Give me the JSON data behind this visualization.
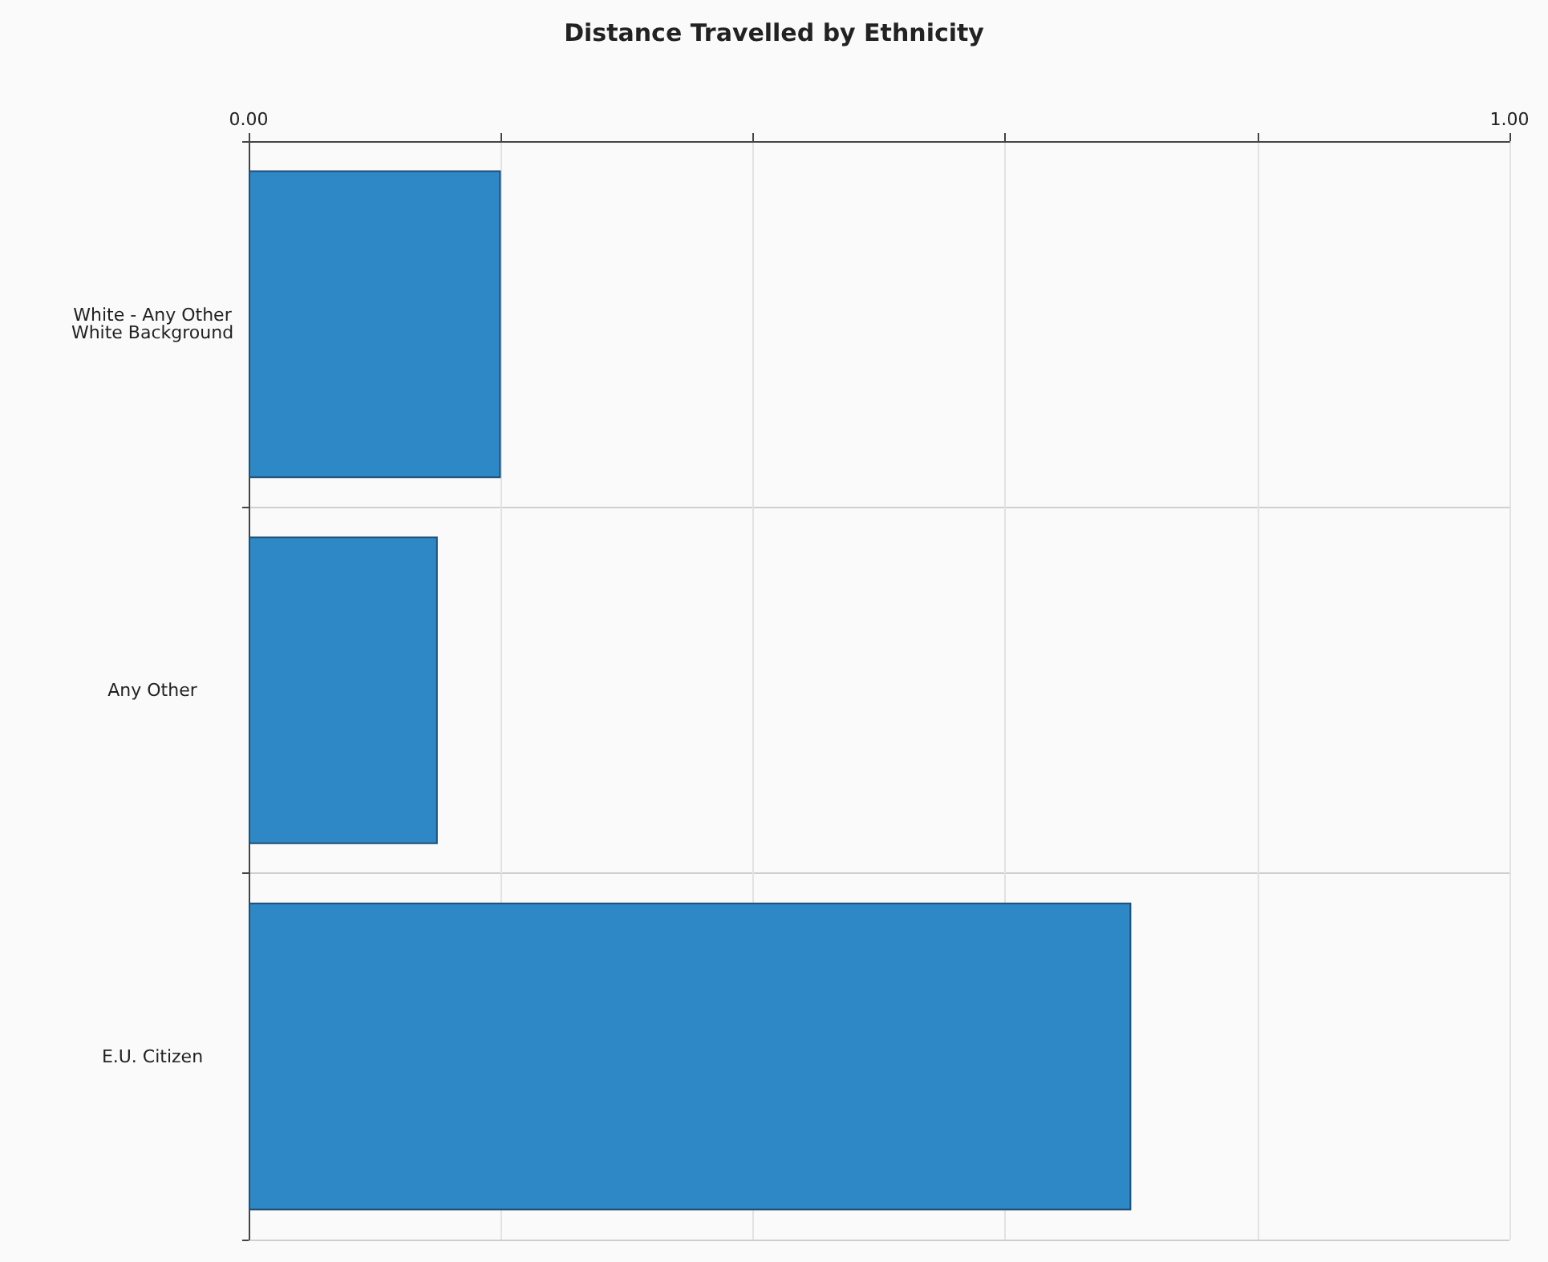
{
  "chart_data": {
    "type": "bar",
    "orientation": "horizontal",
    "title": "Distance Travelled by Ethnicity",
    "categories": [
      "White - Any Other\nWhite Background",
      "Any Other",
      "E.U. Citizen"
    ],
    "values": [
      0.2,
      0.15,
      0.7
    ],
    "color": "#2f88c6",
    "xlim": [
      0,
      1
    ],
    "xticks": [
      {
        "value": 0,
        "label": "0.00"
      },
      {
        "value": 0.2,
        "label": null
      },
      {
        "value": 0.4,
        "label": null
      },
      {
        "value": 0.6,
        "label": null
      },
      {
        "value": 0.8,
        "label": null
      },
      {
        "value": 1,
        "label": "1.00"
      }
    ],
    "grid": true
  }
}
